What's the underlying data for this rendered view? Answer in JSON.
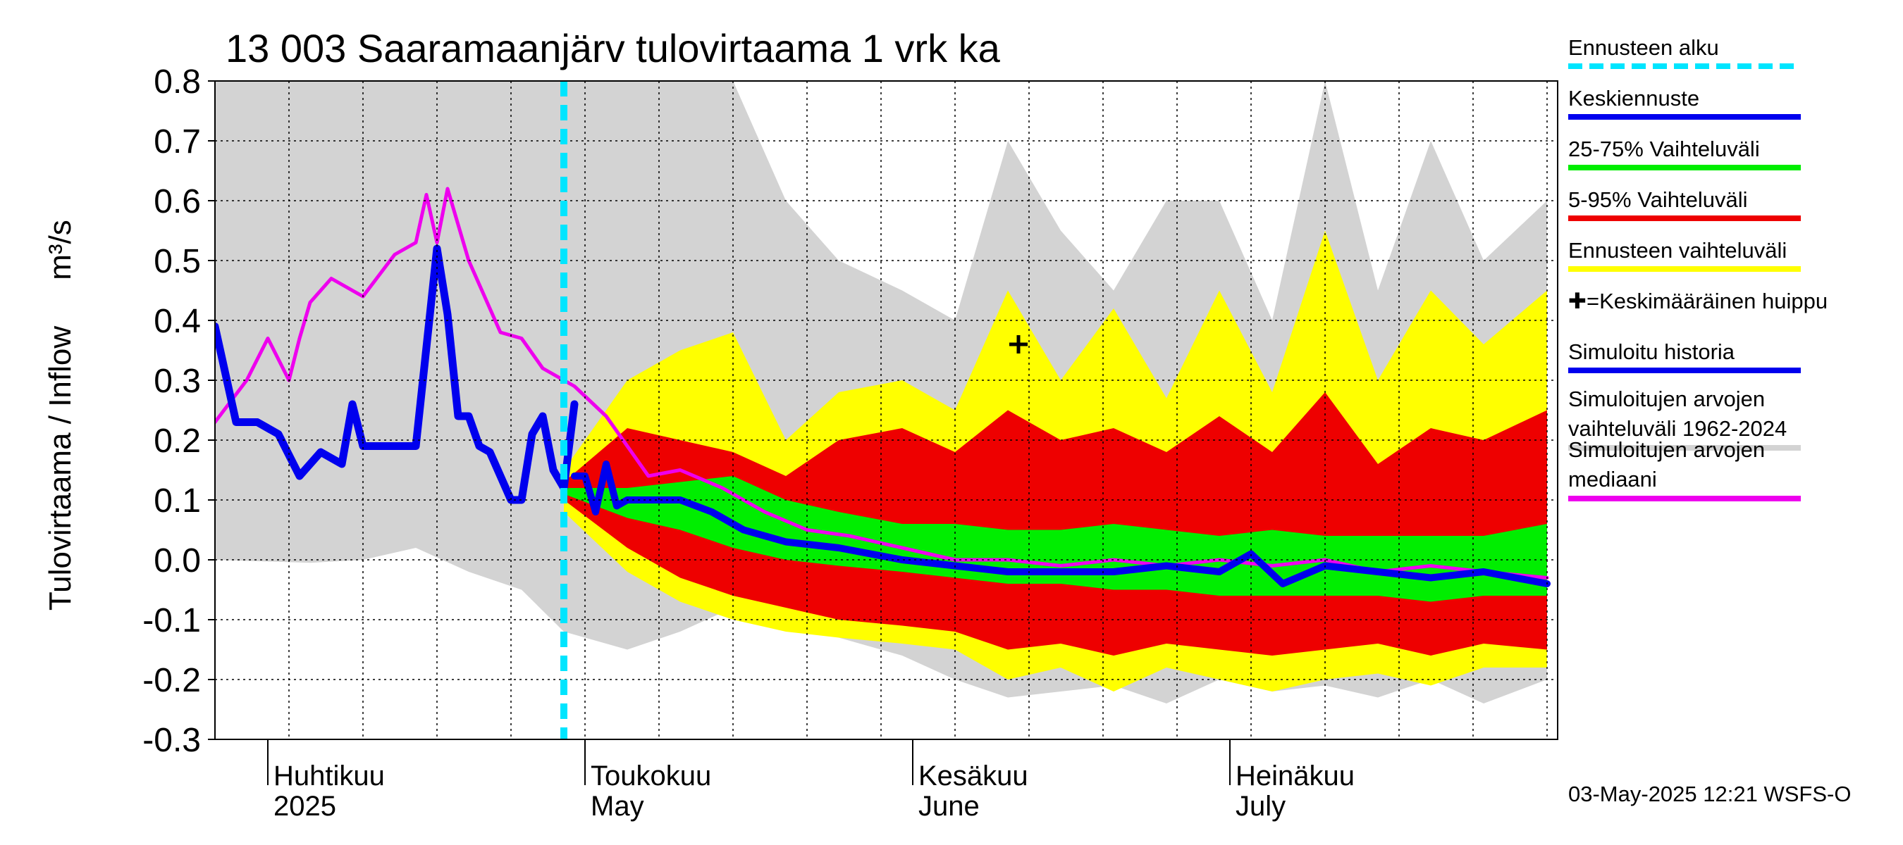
{
  "chart_data": {
    "type": "area",
    "title": "13 003 Saaramaanjärv tulovirtaama 1 vrk ka",
    "ylabel": "Tulovirtaama / Inflow",
    "ylabel_unit": "m³/s",
    "ylim": [
      -0.3,
      0.8
    ],
    "yticks": [
      "-0.3",
      "-0.2",
      "-0.1",
      "0.0",
      "0.1",
      "0.2",
      "0.3",
      "0.4",
      "0.5",
      "0.6",
      "0.7",
      "0.8"
    ],
    "xlim": [
      "2025-03-27",
      "2025-08-01"
    ],
    "month_labels": [
      {
        "date": "2025-04-01",
        "fi": "Huhtikuu",
        "en": "2025"
      },
      {
        "date": "2025-05-01",
        "fi": "Toukokuu",
        "en": "May"
      },
      {
        "date": "2025-06-01",
        "fi": "Kesäkuu",
        "en": "June"
      },
      {
        "date": "2025-07-01",
        "fi": "Heinäkuu",
        "en": "July"
      }
    ],
    "forecast_start": "2025-04-29",
    "mean_peak": {
      "date": "2025-06-11",
      "value": 0.36
    },
    "historical_range": {
      "x": [
        "2025-03-27",
        "2025-04-05",
        "2025-04-10",
        "2025-04-15",
        "2025-04-20",
        "2025-04-25",
        "2025-04-29",
        "2025-05-05",
        "2025-05-10",
        "2025-05-15",
        "2025-05-20",
        "2025-05-25",
        "2025-05-31",
        "2025-06-05",
        "2025-06-10",
        "2025-06-15",
        "2025-06-20",
        "2025-06-25",
        "2025-06-30",
        "2025-07-05",
        "2025-07-10",
        "2025-07-15",
        "2025-07-20",
        "2025-07-25",
        "2025-07-31"
      ],
      "upper": [
        0.8,
        0.8,
        0.8,
        0.8,
        0.8,
        0.8,
        0.8,
        0.8,
        0.8,
        0.8,
        0.6,
        0.5,
        0.45,
        0.4,
        0.7,
        0.55,
        0.45,
        0.6,
        0.6,
        0.4,
        0.8,
        0.45,
        0.7,
        0.5,
        0.6
      ],
      "lower": [
        0.0,
        -0.005,
        0.0,
        0.02,
        -0.02,
        -0.05,
        -0.12,
        -0.15,
        -0.12,
        -0.08,
        -0.1,
        -0.13,
        -0.16,
        -0.2,
        -0.23,
        -0.22,
        -0.21,
        -0.24,
        -0.2,
        -0.22,
        -0.21,
        -0.23,
        -0.2,
        -0.24,
        -0.2
      ]
    },
    "forecast_range": {
      "x": [
        "2025-04-29",
        "2025-05-05",
        "2025-05-10",
        "2025-05-15",
        "2025-05-20",
        "2025-05-25",
        "2025-05-31",
        "2025-06-05",
        "2025-06-10",
        "2025-06-15",
        "2025-06-20",
        "2025-06-25",
        "2025-06-30",
        "2025-07-05",
        "2025-07-10",
        "2025-07-15",
        "2025-07-20",
        "2025-07-25",
        "2025-07-31"
      ],
      "upper": [
        0.15,
        0.3,
        0.35,
        0.38,
        0.2,
        0.28,
        0.3,
        0.25,
        0.45,
        0.3,
        0.42,
        0.27,
        0.45,
        0.28,
        0.55,
        0.3,
        0.45,
        0.36,
        0.45
      ],
      "lower": [
        0.08,
        -0.02,
        -0.07,
        -0.1,
        -0.12,
        -0.13,
        -0.14,
        -0.15,
        -0.2,
        -0.18,
        -0.22,
        -0.18,
        -0.2,
        -0.22,
        -0.2,
        -0.19,
        -0.21,
        -0.18,
        -0.18
      ]
    },
    "p5_95_range": {
      "x": [
        "2025-04-29",
        "2025-05-05",
        "2025-05-10",
        "2025-05-15",
        "2025-05-20",
        "2025-05-25",
        "2025-05-31",
        "2025-06-05",
        "2025-06-10",
        "2025-06-15",
        "2025-06-20",
        "2025-06-25",
        "2025-06-30",
        "2025-07-05",
        "2025-07-10",
        "2025-07-15",
        "2025-07-20",
        "2025-07-25",
        "2025-07-31"
      ],
      "upper": [
        0.13,
        0.22,
        0.2,
        0.18,
        0.14,
        0.2,
        0.22,
        0.18,
        0.25,
        0.2,
        0.22,
        0.18,
        0.24,
        0.18,
        0.28,
        0.16,
        0.22,
        0.2,
        0.25
      ],
      "lower": [
        0.1,
        0.02,
        -0.03,
        -0.06,
        -0.08,
        -0.1,
        -0.11,
        -0.12,
        -0.15,
        -0.14,
        -0.16,
        -0.14,
        -0.15,
        -0.16,
        -0.15,
        -0.14,
        -0.16,
        -0.14,
        -0.15
      ]
    },
    "p25_75_range": {
      "x": [
        "2025-04-29",
        "2025-05-05",
        "2025-05-10",
        "2025-05-15",
        "2025-05-20",
        "2025-05-25",
        "2025-05-31",
        "2025-06-05",
        "2025-06-10",
        "2025-06-15",
        "2025-06-20",
        "2025-06-25",
        "2025-06-30",
        "2025-07-05",
        "2025-07-10",
        "2025-07-15",
        "2025-07-20",
        "2025-07-25",
        "2025-07-31"
      ],
      "upper": [
        0.12,
        0.12,
        0.13,
        0.14,
        0.1,
        0.08,
        0.06,
        0.06,
        0.05,
        0.05,
        0.06,
        0.05,
        0.04,
        0.05,
        0.04,
        0.04,
        0.04,
        0.04,
        0.06
      ],
      "lower": [
        0.11,
        0.07,
        0.05,
        0.02,
        0.0,
        -0.01,
        -0.02,
        -0.03,
        -0.04,
        -0.04,
        -0.05,
        -0.05,
        -0.06,
        -0.06,
        -0.06,
        -0.06,
        -0.07,
        -0.06,
        -0.06
      ]
    },
    "series": [
      {
        "name": "Simuloitu historia",
        "color": "#0000ee",
        "x": [
          "2025-03-27",
          "2025-03-29",
          "2025-03-31",
          "2025-04-02",
          "2025-04-04",
          "2025-04-06",
          "2025-04-08",
          "2025-04-09",
          "2025-04-10",
          "2025-04-11",
          "2025-04-13",
          "2025-04-15",
          "2025-04-17",
          "2025-04-18",
          "2025-04-19",
          "2025-04-20",
          "2025-04-21",
          "2025-04-22",
          "2025-04-24",
          "2025-04-25",
          "2025-04-26",
          "2025-04-27",
          "2025-04-28",
          "2025-04-29",
          "2025-04-30"
        ],
        "values": [
          0.39,
          0.23,
          0.23,
          0.21,
          0.14,
          0.18,
          0.16,
          0.26,
          0.19,
          0.19,
          0.19,
          0.19,
          0.52,
          0.41,
          0.24,
          0.24,
          0.19,
          0.18,
          0.1,
          0.1,
          0.21,
          0.24,
          0.15,
          0.12,
          0.26
        ]
      },
      {
        "name": "Keskiennuste",
        "color": "#0000ee",
        "x": [
          "2025-04-30",
          "2025-05-01",
          "2025-05-02",
          "2025-05-03",
          "2025-05-04",
          "2025-05-05",
          "2025-05-07",
          "2025-05-10",
          "2025-05-13",
          "2025-05-16",
          "2025-05-20",
          "2025-05-25",
          "2025-05-31",
          "2025-06-05",
          "2025-06-10",
          "2025-06-15",
          "2025-06-20",
          "2025-06-25",
          "2025-06-30",
          "2025-07-03",
          "2025-07-06",
          "2025-07-10",
          "2025-07-15",
          "2025-07-20",
          "2025-07-25",
          "2025-07-31"
        ],
        "values": [
          0.14,
          0.14,
          0.08,
          0.16,
          0.09,
          0.1,
          0.1,
          0.1,
          0.08,
          0.05,
          0.03,
          0.02,
          0.0,
          -0.01,
          -0.02,
          -0.02,
          -0.02,
          -0.01,
          -0.02,
          0.01,
          -0.04,
          -0.01,
          -0.02,
          -0.03,
          -0.02,
          -0.04
        ]
      },
      {
        "name": "Simuloitujen arvojen mediaani",
        "color": "#ee00ee",
        "x": [
          "2025-03-27",
          "2025-03-30",
          "2025-04-01",
          "2025-04-03",
          "2025-04-04",
          "2025-04-05",
          "2025-04-07",
          "2025-04-10",
          "2025-04-13",
          "2025-04-15",
          "2025-04-16",
          "2025-04-17",
          "2025-04-18",
          "2025-04-20",
          "2025-04-23",
          "2025-04-25",
          "2025-04-27",
          "2025-04-30",
          "2025-05-03",
          "2025-05-07",
          "2025-05-10",
          "2025-05-14",
          "2025-05-18",
          "2025-05-22",
          "2025-05-26",
          "2025-05-31",
          "2025-06-05",
          "2025-06-10",
          "2025-06-15",
          "2025-06-20",
          "2025-06-25",
          "2025-06-30",
          "2025-07-05",
          "2025-07-10",
          "2025-07-15",
          "2025-07-20",
          "2025-07-25",
          "2025-07-31"
        ],
        "values": [
          0.23,
          0.3,
          0.37,
          0.3,
          0.37,
          0.43,
          0.47,
          0.44,
          0.51,
          0.53,
          0.61,
          0.53,
          0.62,
          0.5,
          0.38,
          0.37,
          0.32,
          0.29,
          0.24,
          0.14,
          0.15,
          0.12,
          0.08,
          0.05,
          0.04,
          0.02,
          0.0,
          0.0,
          -0.01,
          0.0,
          -0.01,
          0.0,
          -0.01,
          0.0,
          -0.02,
          -0.01,
          -0.02,
          -0.03
        ]
      }
    ],
    "legend": [
      {
        "label": "Ennusteen alku",
        "color": "#00e5ff",
        "style": "dashed"
      },
      {
        "label": "Keskiennuste",
        "color": "#0000ee",
        "style": "solid"
      },
      {
        "label": "25-75% Vaihteluväli",
        "color": "#00ee00",
        "style": "solid"
      },
      {
        "label": "5-95% Vaihteluväli",
        "color": "#ee0000",
        "style": "solid"
      },
      {
        "label": "Ennusteen vaihteluväli",
        "color": "#ffff00",
        "style": "solid"
      },
      {
        "label": "✚=Keskimääräinen huippu",
        "color": "",
        "style": "none"
      },
      {
        "label": "Simuloitu historia",
        "color": "#0000ee",
        "style": "solid"
      },
      {
        "label": "Simuloitujen arvojen vaihteluväli 1962-2024",
        "color": "#d3d3d3",
        "style": "solid"
      },
      {
        "label": "Simuloitujen arvojen mediaani",
        "color": "#ee00ee",
        "style": "solid"
      }
    ]
  },
  "footer": {
    "timestamp": "03-May-2025 12:21 WSFS-O"
  }
}
